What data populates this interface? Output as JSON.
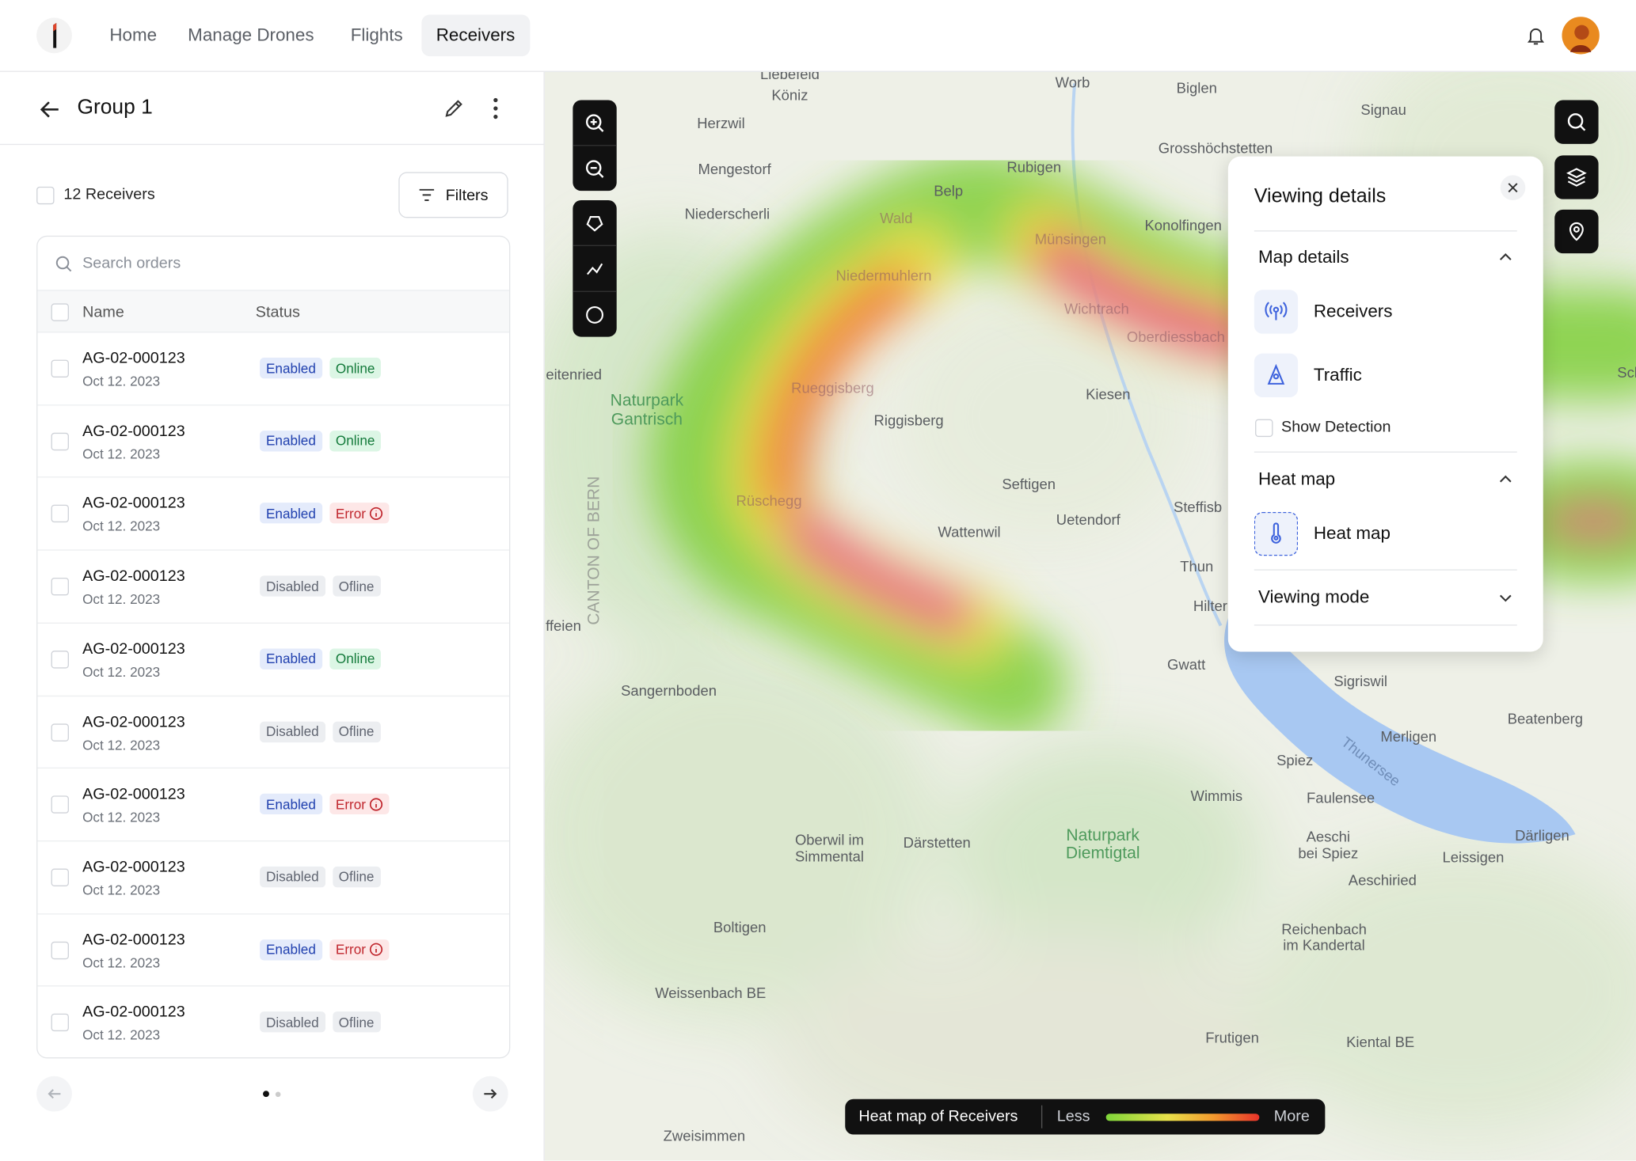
{
  "nav": {
    "items": [
      "Home",
      "Manage Drones",
      "Flights",
      "Receivers"
    ],
    "active": 3
  },
  "group": {
    "title": "Group 1",
    "count_label": "12 Receivers",
    "filters": "Filters",
    "search_placeholder": "Search orders",
    "columns": [
      "Name",
      "Status"
    ],
    "rows": [
      {
        "id": "AG-02-000123",
        "date": "Oct 12. 2023",
        "badges": [
          {
            "label": "Enabled",
            "color": "#1f3fae",
            "background": "#e4ebfb"
          },
          {
            "label": "Online",
            "color": "#137a3a",
            "background": "#dcf6e5"
          }
        ]
      },
      {
        "id": "AG-02-000123",
        "date": "Oct 12. 2023",
        "badges": [
          {
            "label": "Enabled",
            "color": "#1f3fae",
            "background": "#e4ebfb"
          },
          {
            "label": "Online",
            "color": "#137a3a",
            "background": "#dcf6e5"
          }
        ]
      },
      {
        "id": "AG-02-000123",
        "date": "Oct 12. 2023",
        "badges": [
          {
            "label": "Enabled",
            "color": "#1f3fae",
            "background": "#e4ebfb"
          },
          {
            "label": "Error",
            "color": "#c0262d",
            "background": "#fde7e7",
            "icon": true
          }
        ]
      },
      {
        "id": "AG-02-000123",
        "date": "Oct 12. 2023",
        "badges": [
          {
            "label": "Disabled",
            "color": "#5f6470",
            "background": "#eceef1"
          },
          {
            "label": "Ofline",
            "color": "#5f6470",
            "background": "#eceef1"
          }
        ]
      },
      {
        "id": "AG-02-000123",
        "date": "Oct 12. 2023",
        "badges": [
          {
            "label": "Enabled",
            "color": "#1f3fae",
            "background": "#e4ebfb"
          },
          {
            "label": "Online",
            "color": "#137a3a",
            "background": "#dcf6e5"
          }
        ]
      },
      {
        "id": "AG-02-000123",
        "date": "Oct 12. 2023",
        "badges": [
          {
            "label": "Disabled",
            "color": "#5f6470",
            "background": "#eceef1"
          },
          {
            "label": "Ofline",
            "color": "#5f6470",
            "background": "#eceef1"
          }
        ]
      },
      {
        "id": "AG-02-000123",
        "date": "Oct 12. 2023",
        "badges": [
          {
            "label": "Enabled",
            "color": "#1f3fae",
            "background": "#e4ebfb"
          },
          {
            "label": "Error",
            "color": "#c0262d",
            "background": "#fde7e7",
            "icon": true
          }
        ]
      },
      {
        "id": "AG-02-000123",
        "date": "Oct 12. 2023",
        "badges": [
          {
            "label": "Disabled",
            "color": "#5f6470",
            "background": "#eceef1"
          },
          {
            "label": "Ofline",
            "color": "#5f6470",
            "background": "#eceef1"
          }
        ]
      },
      {
        "id": "AG-02-000123",
        "date": "Oct 12. 2023",
        "badges": [
          {
            "label": "Enabled",
            "color": "#1f3fae",
            "background": "#e4ebfb"
          },
          {
            "label": "Error",
            "color": "#c0262d",
            "background": "#fde7e7",
            "icon": true
          }
        ]
      },
      {
        "id": "AG-02-000123",
        "date": "Oct 12. 2023",
        "badges": [
          {
            "label": "Disabled",
            "color": "#5f6470",
            "background": "#eceef1"
          },
          {
            "label": "Ofline",
            "color": "#5f6470",
            "background": "#eceef1"
          }
        ]
      }
    ]
  },
  "map": {
    "labels": [
      "Liebefeld",
      "Köniz",
      "Worb",
      "Biglen",
      "Herzwil",
      "Signau",
      "Grosshöchstetten",
      "Mengestorf",
      "Rubigen",
      "Belp",
      "Niederscherli",
      "Wald",
      "Münsingen",
      "Konolfingen",
      "Niedermuhlern",
      "Wichtrach",
      "Oberdiessbach",
      "eitenried",
      "Naturpark",
      "Gantrisch",
      "Kiesen",
      "Rueggisberg",
      "Riggisberg",
      "Seftigen",
      "Uetendorf",
      "Steffisb",
      "Rüschegg",
      "Wattenwil",
      "Thun",
      "Hilter",
      "CANTON OF BERN",
      "ffeien",
      "Gwatt",
      "Sangernboden",
      "Sigriswil",
      "Beatenberg",
      "Merligen",
      "Thunersee",
      "Spiez",
      "Wimmis",
      "Faulensee",
      "Oberwil im",
      "Simmental",
      "Därstetten",
      "Naturpark",
      "Diemtigtal",
      "Aeschi",
      "bei Spiez",
      "Därligen",
      "Leissigen",
      "Aeschiried",
      "Boltigen",
      "Reichenbach",
      "im Kandertal",
      "Weissenbach BE",
      "Frutigen",
      "Kiental BE",
      "Zweisimmen",
      "Scha"
    ]
  },
  "viewing_details": {
    "title": "Viewing details",
    "map_details": {
      "title": "Map details",
      "items": [
        "Receivers",
        "Traffic"
      ],
      "checkbox": "Show Detection"
    },
    "heat_map": {
      "title": "Heat map",
      "items": [
        "Heat map"
      ]
    },
    "viewing_mode": {
      "title": "Viewing mode"
    }
  },
  "legend": {
    "title": "Heat map of Receivers",
    "less": "Less",
    "more": "More"
  }
}
